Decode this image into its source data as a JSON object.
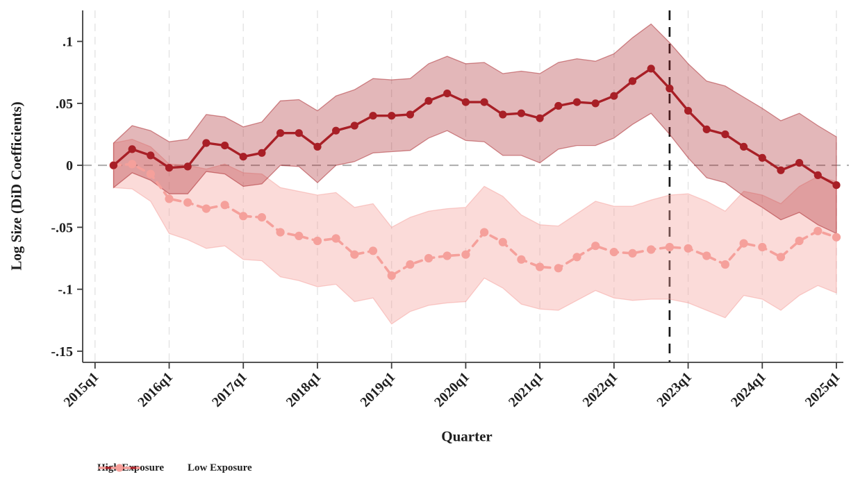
{
  "figure": {
    "title": "",
    "y_axis_title": "Log Size (DiD Coefficients)",
    "x_axis_title": "Quarter"
  },
  "colors": {
    "high_line": "#a81f26",
    "low_line": "#f5a09b",
    "event_line": "#1a1a1a",
    "zero_line": "#ababab",
    "gridline": "#e4e4e4",
    "axis": "#3c3c3c",
    "text": "#1f1f1f",
    "background": "#ffffff"
  },
  "chart_data": {
    "type": "line",
    "title": "",
    "xlabel": "Quarter",
    "ylabel": "Log Size (DiD Coefficients)",
    "ylim": [
      -0.159,
      0.125
    ],
    "yticks": [
      0.1,
      0.05,
      0,
      -0.05,
      -0.1,
      -0.15
    ],
    "ytick_labels": [
      ".1",
      ".05",
      "0",
      "-.05",
      "-.1",
      "-.15"
    ],
    "x_tick_labels": [
      "2015q1",
      "2016q1",
      "2017q1",
      "2018q1",
      "2019q1",
      "2020q1",
      "2021q1",
      "2022q1",
      "2023q1",
      "2024q1",
      "2025q1"
    ],
    "grid": "vertical dashed gridlines at yearly ticks",
    "legend_position": "below-left",
    "reference_line_y": 0,
    "event_line_x": "2022q4",
    "x": [
      "2015q2",
      "2015q3",
      "2015q4",
      "2016q1",
      "2016q2",
      "2016q3",
      "2016q4",
      "2017q1",
      "2017q2",
      "2017q3",
      "2017q4",
      "2018q1",
      "2018q2",
      "2018q3",
      "2018q4",
      "2019q1",
      "2019q2",
      "2019q3",
      "2019q4",
      "2020q1",
      "2020q2",
      "2020q3",
      "2020q4",
      "2021q1",
      "2021q2",
      "2021q3",
      "2021q4",
      "2022q1",
      "2022q2",
      "2022q3",
      "2022q4",
      "2023q1",
      "2023q2",
      "2023q3",
      "2023q4",
      "2024q1",
      "2024q2",
      "2024q3",
      "2024q4",
      "2025q1"
    ],
    "series": [
      {
        "name": "High Exposure",
        "line_style": "solid",
        "marker": "circle",
        "color": "#a81f26",
        "band_opacity": 0.32,
        "values": [
          0.0,
          0.013,
          0.008,
          -0.002,
          -0.001,
          0.018,
          0.016,
          0.007,
          0.01,
          0.026,
          0.026,
          0.015,
          0.028,
          0.032,
          0.04,
          0.04,
          0.041,
          0.052,
          0.058,
          0.051,
          0.051,
          0.041,
          0.042,
          0.038,
          0.048,
          0.051,
          0.05,
          0.056,
          0.068,
          0.078,
          0.062,
          0.044,
          0.029,
          0.025,
          0.015,
          0.006,
          -0.004,
          0.002,
          -0.008,
          -0.016
        ],
        "ci_halfwidth": [
          0.018,
          0.019,
          0.02,
          0.021,
          0.022,
          0.023,
          0.023,
          0.024,
          0.025,
          0.026,
          0.027,
          0.029,
          0.028,
          0.029,
          0.03,
          0.029,
          0.029,
          0.03,
          0.03,
          0.031,
          0.032,
          0.033,
          0.034,
          0.036,
          0.035,
          0.035,
          0.034,
          0.034,
          0.035,
          0.036,
          0.037,
          0.038,
          0.039,
          0.039,
          0.04,
          0.04,
          0.04,
          0.04,
          0.04,
          0.039
        ]
      },
      {
        "name": "Low Exposure",
        "line_style": "dashed",
        "marker": "circle",
        "color": "#f5a09b",
        "band_opacity": 0.38,
        "values": [
          0.0,
          0.001,
          -0.007,
          -0.027,
          -0.03,
          -0.035,
          -0.032,
          -0.041,
          -0.042,
          -0.054,
          -0.057,
          -0.061,
          -0.059,
          -0.072,
          -0.069,
          -0.089,
          -0.08,
          -0.075,
          -0.073,
          -0.072,
          -0.054,
          -0.062,
          -0.076,
          -0.082,
          -0.083,
          -0.074,
          -0.065,
          -0.07,
          -0.071,
          -0.068,
          -0.066,
          -0.067,
          -0.073,
          -0.08,
          -0.063,
          -0.066,
          -0.074,
          -0.061,
          -0.053,
          -0.058
        ],
        "ci_halfwidth": [
          0.018,
          0.02,
          0.022,
          0.028,
          0.03,
          0.032,
          0.033,
          0.035,
          0.035,
          0.036,
          0.036,
          0.037,
          0.037,
          0.038,
          0.038,
          0.039,
          0.038,
          0.038,
          0.038,
          0.038,
          0.037,
          0.037,
          0.036,
          0.034,
          0.034,
          0.035,
          0.036,
          0.037,
          0.038,
          0.04,
          0.042,
          0.044,
          0.044,
          0.043,
          0.042,
          0.042,
          0.043,
          0.044,
          0.044,
          0.045
        ]
      }
    ]
  }
}
